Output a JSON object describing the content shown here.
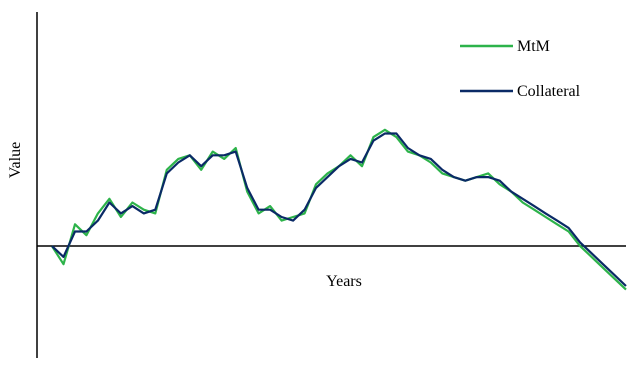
{
  "chart_data": {
    "type": "line",
    "title": "",
    "xlabel": "Years",
    "ylabel": "Value",
    "xlim": [
      0,
      100
    ],
    "ylim": [
      -60,
      130
    ],
    "grid": false,
    "legend_position": "top-right",
    "x": [
      0,
      2,
      4,
      6,
      8,
      10,
      12,
      14,
      16,
      18,
      20,
      22,
      24,
      26,
      28,
      30,
      32,
      34,
      36,
      38,
      40,
      42,
      44,
      46,
      48,
      50,
      52,
      54,
      56,
      58,
      60,
      62,
      64,
      66,
      68,
      70,
      72,
      74,
      76,
      78,
      80,
      82,
      84,
      86,
      88,
      90,
      92,
      94,
      96,
      98,
      100
    ],
    "series": [
      {
        "name": "MtM",
        "color": "#2db34a",
        "values": [
          0,
          -10,
          12,
          6,
          18,
          26,
          16,
          24,
          20,
          18,
          42,
          48,
          50,
          42,
          52,
          48,
          54,
          30,
          18,
          22,
          14,
          16,
          18,
          34,
          40,
          44,
          50,
          44,
          60,
          64,
          60,
          52,
          50,
          46,
          40,
          38,
          36,
          38,
          40,
          34,
          30,
          24,
          20,
          16,
          12,
          8,
          0,
          -6,
          -12,
          -18,
          -24
        ]
      },
      {
        "name": "Collateral",
        "color": "#0a2a66",
        "values": [
          0,
          -6,
          8,
          8,
          14,
          24,
          18,
          22,
          18,
          20,
          40,
          46,
          50,
          44,
          50,
          50,
          52,
          32,
          20,
          20,
          16,
          14,
          20,
          32,
          38,
          44,
          48,
          46,
          58,
          62,
          62,
          54,
          50,
          48,
          42,
          38,
          36,
          38,
          38,
          36,
          30,
          26,
          22,
          18,
          14,
          10,
          2,
          -4,
          -10,
          -16,
          -22
        ]
      }
    ]
  }
}
